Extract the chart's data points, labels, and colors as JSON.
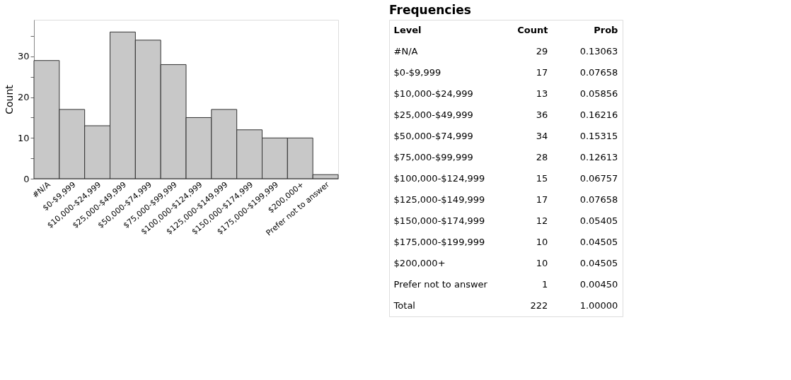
{
  "chart_data": [
    {
      "type": "bar",
      "ylabel": "Count",
      "categories": [
        "#N/A",
        "$0-$9,999",
        "$10,000-$24,999",
        "$25,000-$49,999",
        "$50,000-$74,999",
        "$75,000-$99,999",
        "$100,000-$124,999",
        "$125,000-$149,999",
        "$150,000-$174,999",
        "$175,000-$199,999",
        "$200,000+",
        "Prefer not to answer"
      ],
      "values": [
        29,
        17,
        13,
        36,
        34,
        28,
        15,
        17,
        12,
        10,
        10,
        1
      ],
      "color": "#c8c8c8",
      "ylim": [
        0,
        39
      ],
      "yticks": [
        0,
        {
          "value": 5,
          "label": null
        },
        10,
        {
          "value": 15,
          "label": null
        },
        20,
        {
          "value": 25,
          "label": null
        },
        30,
        {
          "value": 35,
          "label": null
        }
      ],
      "grid": false
    },
    {
      "type": "other",
      "title": "Frequencies",
      "annotations": [
        "Level",
        "Count",
        "Prob",
        "#N/A",
        "29",
        "0.13063",
        "$0-$9,999",
        "17",
        "0.07658",
        "$10,000-$24,999",
        "13",
        "0.05856",
        "$25,000-$49,999",
        "36",
        "0.16216",
        "$50,000-$74,999",
        "34",
        "0.15315",
        "$75,000-$99,999",
        "28",
        "0.12613",
        "$100,000-$124,999",
        "15",
        "0.06757",
        "$125,000-$149,999",
        "17",
        "0.07658",
        "$150,000-$174,999",
        "12",
        "0.05405",
        "$175,000-$199,999",
        "10",
        "0.04505",
        "$200,000+",
        "10",
        "0.04505",
        "Prefer not to answer",
        "1",
        "0.00450",
        "Total",
        "222",
        "1.00000"
      ]
    }
  ]
}
